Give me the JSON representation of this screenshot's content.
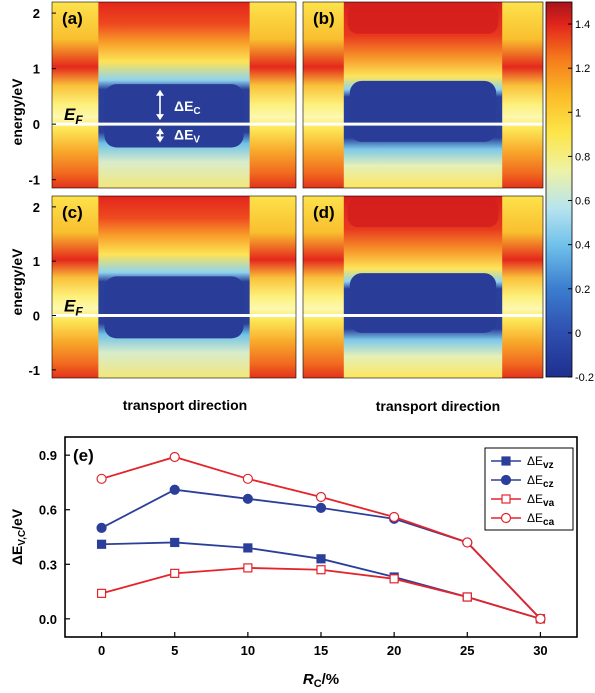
{
  "heatmaps": {
    "panels": [
      {
        "label": "(a)",
        "variant": "narrow",
        "has_ef": true,
        "has_arrows": true
      },
      {
        "label": "(b)",
        "variant": "wide",
        "has_ef": false,
        "has_arrows": false
      },
      {
        "label": "(c)",
        "variant": "narrow",
        "has_ef": true,
        "has_arrows": false
      },
      {
        "label": "(d)",
        "variant": "wide",
        "has_ef": false,
        "has_arrows": false
      }
    ],
    "ylabel": "energy/eV",
    "yticks": [
      "2",
      "1",
      "0",
      "-1"
    ],
    "xlabel": "transport direction",
    "ef_label": "E",
    "ef_sub": "F",
    "dEc_label": "ΔE",
    "dEc_sub": "C",
    "dEv_label": "ΔE",
    "dEv_sub": "V",
    "colorbar_ticks": [
      "1.4",
      "1.2",
      "1",
      "0.8",
      "0.6",
      "0.4",
      "0.2",
      "0",
      "-0.2"
    ],
    "colorbar_range": [
      -0.2,
      1.5
    ]
  },
  "chart_data": {
    "type": "line",
    "panel_label": "(e)",
    "x": [
      0,
      5,
      10,
      15,
      20,
      25,
      30
    ],
    "xlabel": "R",
    "xlabel_sub": "C",
    "xlabel_suffix": "/%",
    "ylabel": "ΔE",
    "ylabel_sub": "V,C",
    "ylabel_suffix": "/eV",
    "xlim": [
      -2.5,
      32.5
    ],
    "ylim": [
      -0.1,
      1.0
    ],
    "yticks": [
      "0.0",
      "0.3",
      "0.6",
      "0.9"
    ],
    "xticks": [
      "0",
      "5",
      "10",
      "15",
      "20",
      "25",
      "30"
    ],
    "legend_position": "top-right",
    "series": [
      {
        "name": "ΔE",
        "sub": "vz",
        "color": "#2b3f9a",
        "marker": "square",
        "filled": true,
        "values": [
          0.41,
          0.42,
          0.39,
          0.33,
          0.23,
          0.12,
          0.0
        ]
      },
      {
        "name": "ΔE",
        "sub": "cz",
        "color": "#2b3f9a",
        "marker": "circle",
        "filled": true,
        "values": [
          0.5,
          0.71,
          0.66,
          0.61,
          0.55,
          0.42,
          0.0
        ]
      },
      {
        "name": "ΔE",
        "sub": "va",
        "color": "#e3242b",
        "marker": "square",
        "filled": false,
        "values": [
          0.14,
          0.25,
          0.28,
          0.27,
          0.22,
          0.12,
          0.0
        ]
      },
      {
        "name": "ΔE",
        "sub": "ca",
        "color": "#e3242b",
        "marker": "circle",
        "filled": false,
        "values": [
          0.77,
          0.89,
          0.77,
          0.67,
          0.56,
          0.42,
          0.0
        ]
      }
    ]
  }
}
